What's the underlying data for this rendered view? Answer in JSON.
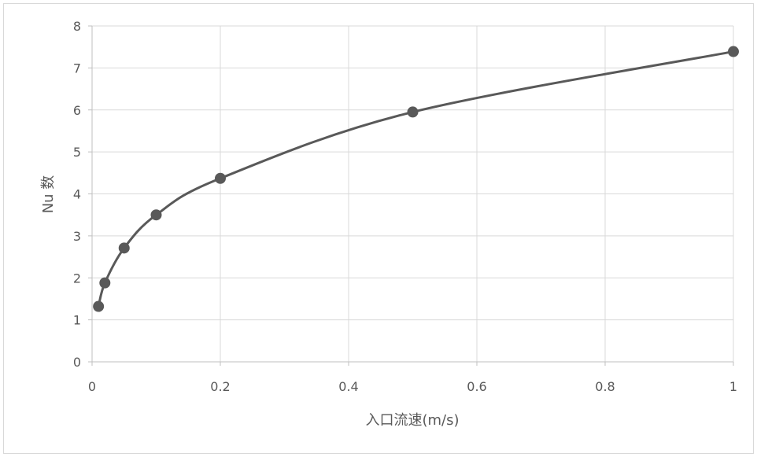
{
  "chart_data": {
    "type": "scatter",
    "mode": "smooth-line-with-markers",
    "xlabel": "入口流速(m/s)",
    "ylabel": "Nu 数",
    "xlim": [
      0,
      1
    ],
    "ylim": [
      0,
      8
    ],
    "xticks": [
      0,
      0.2,
      0.4,
      0.6,
      0.8,
      1
    ],
    "yticks": [
      0,
      1,
      2,
      3,
      4,
      5,
      6,
      7,
      8
    ],
    "xtick_labels": [
      "0",
      "0.2",
      "0.4",
      "0.6",
      "0.8",
      "1"
    ],
    "ytick_labels": [
      "0",
      "1",
      "2",
      "3",
      "4",
      "5",
      "6",
      "7",
      "8"
    ],
    "grid": true,
    "legend": false,
    "series": [
      {
        "x": [
          0.01,
          0.02,
          0.05,
          0.1,
          0.2,
          0.5,
          1.0
        ],
        "y": [
          1.32,
          1.88,
          2.71,
          3.5,
          4.37,
          5.95,
          7.39
        ],
        "color": "#595959"
      }
    ]
  }
}
